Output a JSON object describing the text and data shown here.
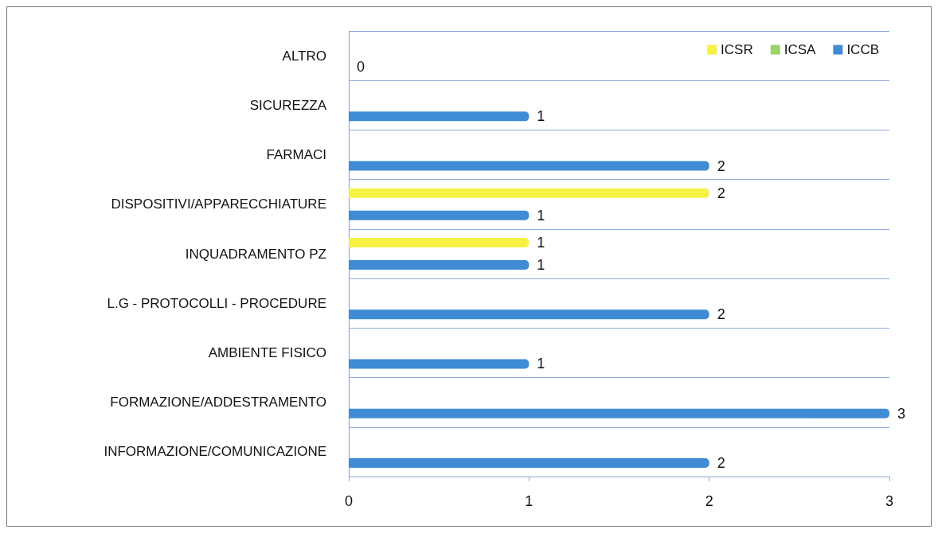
{
  "chart_data": {
    "type": "bar",
    "orientation": "horizontal",
    "categories": [
      "ALTRO",
      "SICUREZZA",
      "FARMACI",
      "DISPOSITIVI/APPARECCHIATURE",
      "INQUADRAMENTO PZ",
      "L.G - PROTOCOLLI - PROCEDURE",
      "AMBIENTE FISICO",
      "FORMAZIONE/ADDESTRAMENTO",
      "INFORMAZIONE/COMUNICAZIONE"
    ],
    "series": [
      {
        "name": "ICSR",
        "color": "#f5f243",
        "values": [
          null,
          null,
          null,
          2,
          1,
          null,
          null,
          null,
          null
        ]
      },
      {
        "name": "ICSA",
        "color": "#9bd36a",
        "values": [
          null,
          null,
          null,
          null,
          null,
          null,
          null,
          null,
          null
        ]
      },
      {
        "name": "ICCB",
        "color": "#3f8bd4",
        "values": [
          0,
          1,
          2,
          1,
          1,
          2,
          1,
          3,
          2
        ]
      }
    ],
    "xlim": [
      0,
      3
    ],
    "xticks": [
      0,
      1,
      2,
      3
    ],
    "grid": "y",
    "legend": "top right",
    "data_labels": true
  }
}
